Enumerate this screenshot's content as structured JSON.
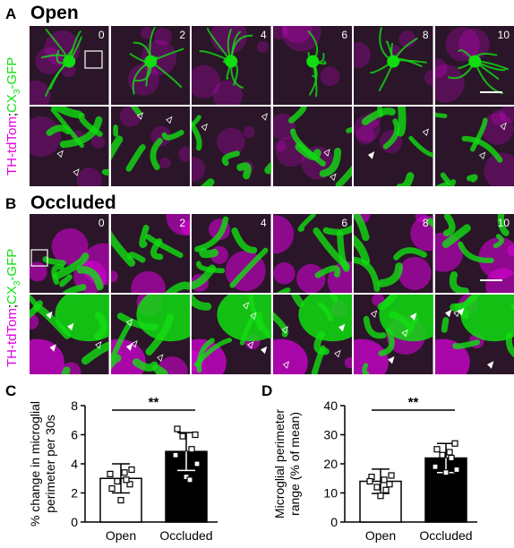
{
  "panels": {
    "A": {
      "letter": "A",
      "title": "Open",
      "side_label": {
        "red": "TH-tdTom",
        "sep": ";",
        "green_main": "CX",
        "green_sub": "3",
        "green_tail": "-GFP"
      },
      "timepoints": [
        "0",
        "2",
        "4",
        "6",
        "8",
        "10"
      ]
    },
    "B": {
      "letter": "B",
      "title": "Occluded",
      "side_label": {
        "red": "TH-tdTom",
        "sep": ";",
        "green_main": "CX",
        "green_sub": "3",
        "green_tail": "-GFP"
      },
      "timepoints": [
        "0",
        "2",
        "4",
        "6",
        "8",
        "10"
      ]
    },
    "C": {
      "letter": "C"
    },
    "D": {
      "letter": "D"
    }
  },
  "colors": {
    "magenta": "#e000e0",
    "green": "#11dd11",
    "background_dark": "#2a1628"
  },
  "chart_data": [
    {
      "type": "bar",
      "panel": "C",
      "categories": [
        "Open",
        "Occluded"
      ],
      "values": [
        3.0,
        4.85
      ],
      "errors": [
        1.0,
        1.3
      ],
      "points": [
        [
          2.3,
          2.6,
          2.8,
          2.9,
          3.3,
          3.6,
          1.5,
          3.4
        ],
        [
          6.4,
          6.0,
          5.9,
          5.0,
          4.6,
          4.0,
          3.1,
          2.9
        ]
      ],
      "bar_colors": [
        "#ffffff",
        "#000000"
      ],
      "ylabel": "% change in microglial perimeter per 30s",
      "ylabel_lines": [
        "% change in microglial",
        "perimeter per 30s"
      ],
      "yticks": [
        0,
        2,
        4,
        6,
        8
      ],
      "ylim": [
        0,
        8
      ],
      "significance": "**"
    },
    {
      "type": "bar",
      "panel": "D",
      "categories": [
        "Open",
        "Occluded"
      ],
      "values": [
        14.0,
        22.0
      ],
      "errors": [
        4.2,
        5.0
      ],
      "points": [
        [
          15.5,
          13.0,
          12.0,
          11.0,
          14.0,
          16.0,
          9.0,
          14.5
        ],
        [
          25.0,
          27.0,
          23.0,
          22.0,
          19.0,
          18.0,
          17.0,
          24.0
        ]
      ],
      "bar_colors": [
        "#ffffff",
        "#000000"
      ],
      "ylabel": "Microglial perimeter range (% of mean)",
      "ylabel_lines": [
        "Microglial perimeter",
        "range (% of mean)"
      ],
      "yticks": [
        0,
        10,
        20,
        30,
        40
      ],
      "ylim": [
        0,
        40
      ],
      "significance": "**"
    }
  ]
}
